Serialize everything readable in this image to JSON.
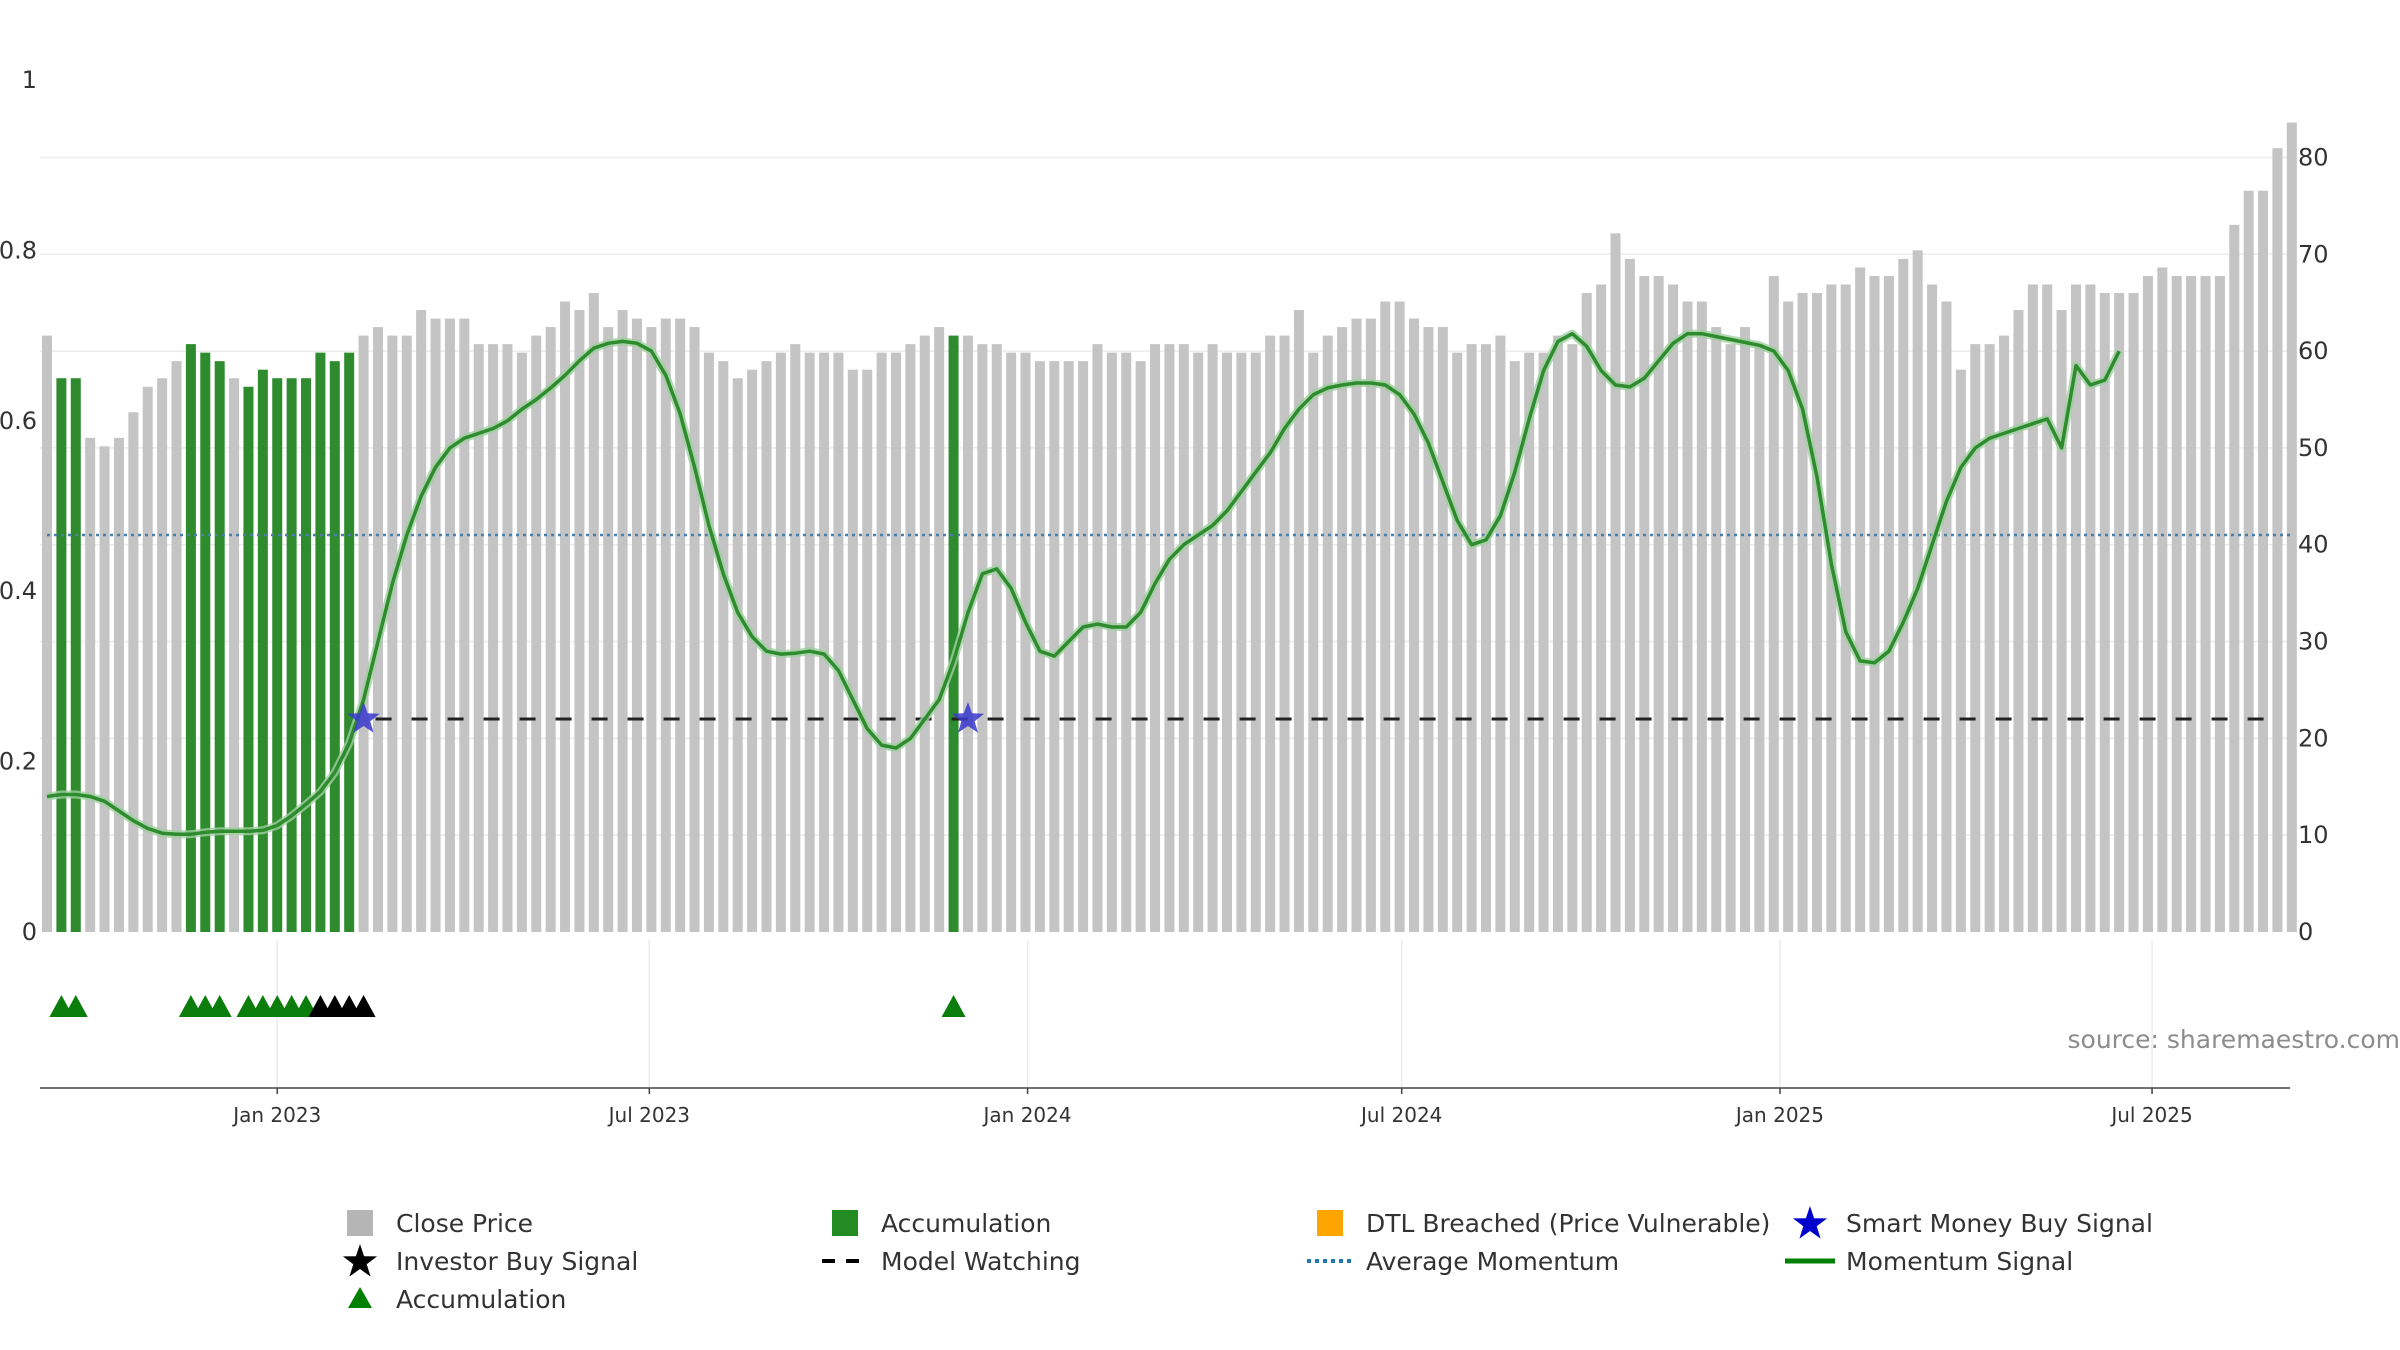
{
  "chart_data": {
    "type": "bar",
    "title": "",
    "xlabel": "",
    "ylabel": "",
    "source_text": "source: sharemaestro.com",
    "x_start": "2022-09-11",
    "x_step_days": 7,
    "x_tick_labels": [
      {
        "label": "Jan 2023",
        "date": "2023-01-01"
      },
      {
        "label": "Jul 2023",
        "date": "2023-07-01"
      },
      {
        "label": "Jan 2024",
        "date": "2024-01-01"
      },
      {
        "label": "Jul 2024",
        "date": "2024-07-01"
      },
      {
        "label": "Jan 2025",
        "date": "2025-01-01"
      },
      {
        "label": "Jul 2025",
        "date": "2025-07-01"
      }
    ],
    "left_axis": {
      "range": [
        0,
        1
      ],
      "tick_labels": [
        "0",
        "0.2",
        "0.4",
        "0.6",
        "0.8",
        "1"
      ]
    },
    "right_axis": {
      "range": [
        0,
        88
      ],
      "tick_labels": [
        "0",
        "10",
        "20",
        "30",
        "40",
        "50",
        "60",
        "70",
        "80"
      ]
    },
    "grid": true,
    "close_price": [
      0.7,
      0.65,
      0.65,
      0.58,
      0.57,
      0.58,
      0.61,
      0.64,
      0.65,
      0.67,
      0.69,
      0.68,
      0.67,
      0.65,
      0.64,
      0.66,
      0.65,
      0.65,
      0.65,
      0.68,
      0.67,
      0.68,
      0.7,
      0.71,
      0.7,
      0.7,
      0.73,
      0.72,
      0.72,
      0.72,
      0.69,
      0.69,
      0.69,
      0.68,
      0.7,
      0.71,
      0.74,
      0.73,
      0.75,
      0.71,
      0.73,
      0.72,
      0.71,
      0.72,
      0.72,
      0.71,
      0.68,
      0.67,
      0.65,
      0.66,
      0.67,
      0.68,
      0.69,
      0.68,
      0.68,
      0.68,
      0.66,
      0.66,
      0.68,
      0.68,
      0.69,
      0.7,
      0.71,
      0.7,
      0.7,
      0.69,
      0.69,
      0.68,
      0.68,
      0.67,
      0.67,
      0.67,
      0.67,
      0.69,
      0.68,
      0.68,
      0.67,
      0.69,
      0.69,
      0.69,
      0.68,
      0.69,
      0.68,
      0.68,
      0.68,
      0.7,
      0.7,
      0.73,
      0.68,
      0.7,
      0.71,
      0.72,
      0.72,
      0.74,
      0.74,
      0.72,
      0.71,
      0.71,
      0.68,
      0.69,
      0.69,
      0.7,
      0.67,
      0.68,
      0.68,
      0.7,
      0.69,
      0.75,
      0.76,
      0.82,
      0.79,
      0.77,
      0.77,
      0.76,
      0.74,
      0.74,
      0.71,
      0.69,
      0.71,
      0.69,
      0.77,
      0.74,
      0.75,
      0.75,
      0.76,
      0.76,
      0.78,
      0.77,
      0.77,
      0.79,
      0.8,
      0.76,
      0.74,
      0.66,
      0.69,
      0.69,
      0.7,
      0.73,
      0.76,
      0.76,
      0.73,
      0.76,
      0.76,
      0.75,
      0.75,
      0.75,
      0.77,
      0.78,
      0.77,
      0.77,
      0.77,
      0.77,
      0.83,
      0.87,
      0.87,
      0.92,
      0.95
    ],
    "accumulation_bars_at": [
      1,
      2,
      10,
      11,
      12,
      14,
      15,
      16,
      17,
      18,
      19,
      20,
      21,
      63
    ],
    "accumulation_markers_at": [
      1,
      2,
      10,
      11,
      12,
      14,
      15,
      16,
      17,
      18
    ],
    "investor_buy_markers_at": [
      19,
      20,
      21,
      22
    ],
    "smart_money_buy_markers_at": [
      22,
      64
    ],
    "model_watching": {
      "level": 22,
      "from_index": 22
    },
    "average_momentum": 41,
    "momentum_signal": [
      14,
      14.2,
      14.2,
      14,
      13.5,
      12.5,
      11.5,
      10.7,
      10.2,
      10.1,
      10.1,
      10.3,
      10.4,
      10.4,
      10.4,
      10.5,
      11,
      12,
      13.2,
      14.5,
      16.5,
      19.5,
      24,
      30,
      36,
      41,
      45,
      48,
      50,
      51,
      51.5,
      52,
      52.8,
      54,
      55,
      56.2,
      57.5,
      59,
      60.3,
      60.8,
      61,
      60.8,
      60,
      57.5,
      53.5,
      48,
      42,
      37,
      33,
      30.5,
      29,
      28.7,
      28.8,
      29,
      28.7,
      27,
      24,
      21,
      19.3,
      19,
      20,
      22,
      24,
      28,
      33,
      37,
      37.5,
      35.5,
      32,
      29,
      28.5,
      30,
      31.5,
      31.8,
      31.5,
      31.5,
      33,
      36,
      38.5,
      40,
      41,
      42,
      43.5,
      45.5,
      47.5,
      49.5,
      52,
      54,
      55.5,
      56.2,
      56.5,
      56.7,
      56.7,
      56.5,
      55.5,
      53.5,
      50.5,
      46.5,
      42.5,
      40,
      40.5,
      43,
      47.5,
      53,
      58,
      61,
      61.8,
      60.5,
      58,
      56.5,
      56.3,
      57.2,
      59,
      60.8,
      61.8,
      61.8,
      61.5,
      61.2,
      60.9,
      60.6,
      60,
      58,
      54,
      47,
      38,
      31,
      28,
      27.8,
      29,
      32,
      35.5,
      40,
      44.5,
      48,
      50,
      51,
      51.5,
      52,
      52.5,
      53,
      50,
      58.5,
      56.5,
      57,
      60
    ],
    "legend": [
      {
        "label": "Close Price",
        "symbol": "square",
        "color": "#b5b5b5"
      },
      {
        "label": "Accumulation",
        "symbol": "square",
        "color": "#228b22"
      },
      {
        "label": "DTL Breached (Price Vulnerable)",
        "symbol": "square",
        "color": "#ffa500"
      },
      {
        "label": "Smart Money Buy Signal",
        "symbol": "star",
        "color": "#0000cd"
      },
      {
        "label": "Investor Buy Signal",
        "symbol": "star",
        "color": "#000000"
      },
      {
        "label": "Model Watching",
        "symbol": "dash",
        "color": "#000000"
      },
      {
        "label": "Average Momentum",
        "symbol": "dot",
        "color": "#1f77b4"
      },
      {
        "label": "Momentum Signal",
        "symbol": "line",
        "color": "#008000"
      },
      {
        "label": "Accumulation",
        "symbol": "triangle",
        "color": "#008000"
      }
    ],
    "colors": {
      "close_bar": "#c4c4c4",
      "accumulation_bar": "#2e8b2e",
      "accumulation_marker": "#0b7d0b",
      "investor_marker": "#000000",
      "smart_money_marker": "#3838cc",
      "model_watching": "#222222",
      "average_momentum": "#4a7fa8",
      "momentum_line": "#2e8b2e"
    }
  }
}
